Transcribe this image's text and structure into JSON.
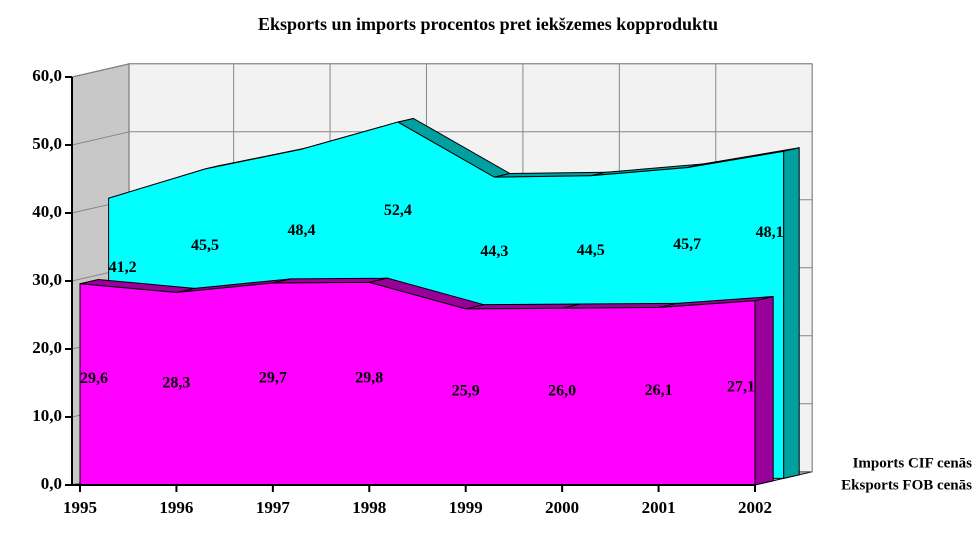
{
  "chart_data": {
    "type": "area3d",
    "title": "Eksports un imports procentos pret iekšzemes kopproduktu",
    "categories": [
      "1995",
      "1996",
      "1997",
      "1998",
      "1999",
      "2000",
      "2001",
      "2002"
    ],
    "series": [
      {
        "name": "Imports CIF cenās",
        "color": "#00ffff",
        "values": [
          41.2,
          45.5,
          48.4,
          52.4,
          44.3,
          44.5,
          45.7,
          48.1
        ],
        "value_labels": [
          "41,2",
          "45,5",
          "48,4",
          "52,4",
          "44,3",
          "44,5",
          "45,7",
          "48,1"
        ]
      },
      {
        "name": "Eksports FOB cenās",
        "color": "#ff00ff",
        "values": [
          29.6,
          28.3,
          29.7,
          29.8,
          25.9,
          26.0,
          26.1,
          27.1
        ],
        "value_labels": [
          "29,6",
          "28,3",
          "29,7",
          "29,8",
          "25,9",
          "26,0",
          "26,1",
          "27,1"
        ]
      }
    ],
    "ylim": [
      0,
      60
    ],
    "yticks": [
      {
        "value": 0,
        "label": "0,0"
      },
      {
        "value": 10,
        "label": "10,0"
      },
      {
        "value": 20,
        "label": "20,0"
      },
      {
        "value": 30,
        "label": "30,0"
      },
      {
        "value": 40,
        "label": "40,0"
      },
      {
        "value": 50,
        "label": "50,0"
      },
      {
        "value": 60,
        "label": "60,0"
      }
    ],
    "grid": true
  }
}
